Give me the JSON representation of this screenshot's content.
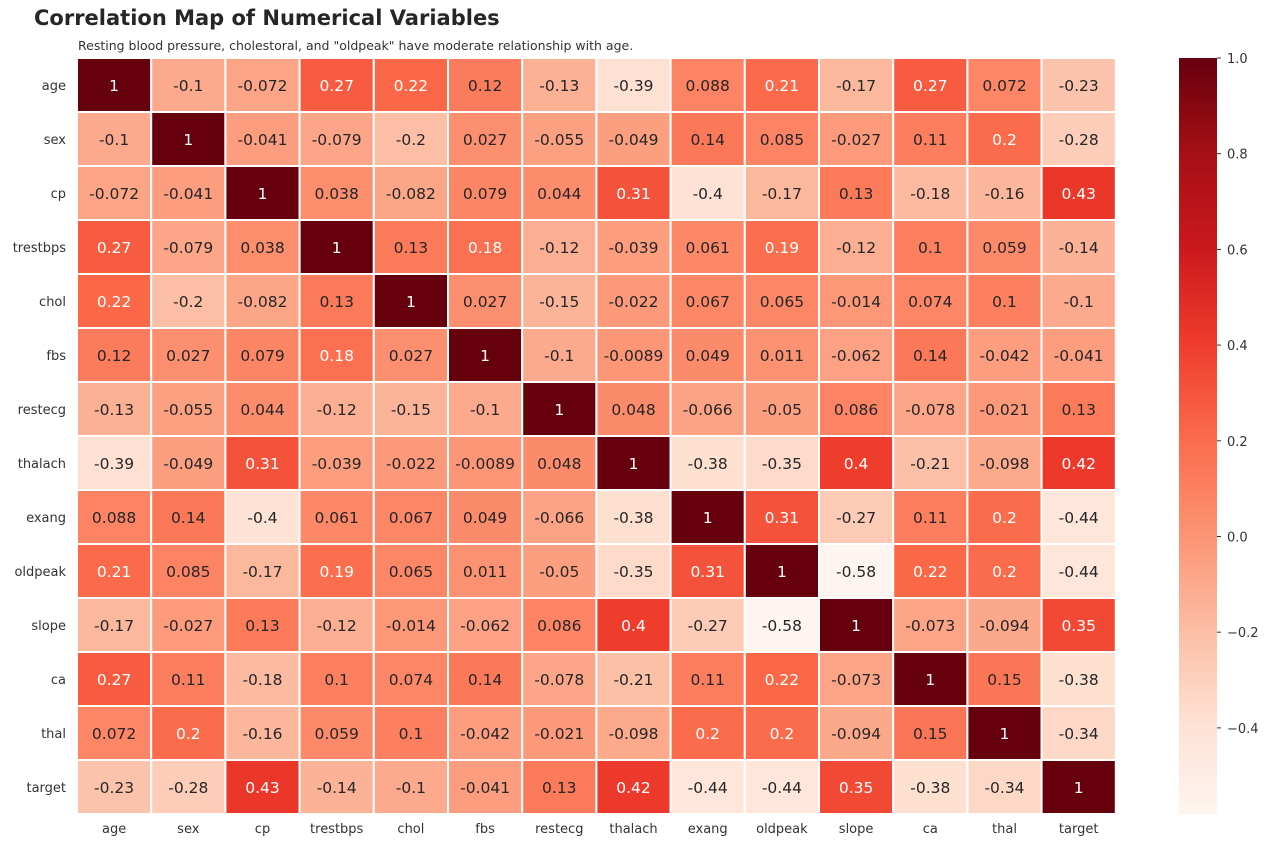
{
  "chart_data": {
    "type": "heatmap",
    "title": "Correlation Map of Numerical Variables",
    "subtitle": "Resting blood pressure, cholestoral, and \"oldpeak\" have moderate relationship with age.",
    "variables": [
      "age",
      "sex",
      "cp",
      "trestbps",
      "chol",
      "fbs",
      "restecg",
      "thalach",
      "exang",
      "oldpeak",
      "slope",
      "ca",
      "thal",
      "target"
    ],
    "values": [
      [
        1,
        -0.1,
        -0.072,
        0.27,
        0.22,
        0.12,
        -0.13,
        -0.39,
        0.088,
        0.21,
        -0.17,
        0.27,
        0.072,
        -0.23
      ],
      [
        -0.1,
        1,
        -0.041,
        -0.079,
        -0.2,
        0.027,
        -0.055,
        -0.049,
        0.14,
        0.085,
        -0.027,
        0.11,
        0.2,
        -0.28
      ],
      [
        -0.072,
        -0.041,
        1,
        0.038,
        -0.082,
        0.079,
        0.044,
        0.31,
        -0.4,
        -0.17,
        0.13,
        -0.18,
        -0.16,
        0.43
      ],
      [
        0.27,
        -0.079,
        0.038,
        1,
        0.13,
        0.18,
        -0.12,
        -0.039,
        0.061,
        0.19,
        -0.12,
        0.1,
        0.059,
        -0.14
      ],
      [
        0.22,
        -0.2,
        -0.082,
        0.13,
        1,
        0.027,
        -0.15,
        -0.022,
        0.067,
        0.065,
        -0.014,
        0.074,
        0.1,
        -0.1
      ],
      [
        0.12,
        0.027,
        0.079,
        0.18,
        0.027,
        1,
        -0.1,
        -0.0089,
        0.049,
        0.011,
        -0.062,
        0.14,
        -0.042,
        -0.041
      ],
      [
        -0.13,
        -0.055,
        0.044,
        -0.12,
        -0.15,
        -0.1,
        1,
        0.048,
        -0.066,
        -0.05,
        0.086,
        -0.078,
        -0.021,
        0.13
      ],
      [
        -0.39,
        -0.049,
        0.31,
        -0.039,
        -0.022,
        -0.0089,
        0.048,
        1,
        -0.38,
        -0.35,
        0.4,
        -0.21,
        -0.098,
        0.42
      ],
      [
        0.088,
        0.14,
        -0.4,
        0.061,
        0.067,
        0.049,
        -0.066,
        -0.38,
        1,
        0.31,
        -0.27,
        0.11,
        0.2,
        -0.44
      ],
      [
        0.21,
        0.085,
        -0.17,
        0.19,
        0.065,
        0.011,
        -0.05,
        -0.35,
        0.31,
        1,
        -0.58,
        0.22,
        0.2,
        -0.44
      ],
      [
        -0.17,
        -0.027,
        0.13,
        -0.12,
        -0.014,
        -0.062,
        0.086,
        0.4,
        -0.27,
        -0.58,
        1,
        -0.073,
        -0.094,
        0.35
      ],
      [
        0.27,
        0.11,
        -0.18,
        0.1,
        0.074,
        0.14,
        -0.078,
        -0.21,
        0.11,
        0.22,
        -0.073,
        1,
        0.15,
        -0.38
      ],
      [
        0.072,
        0.2,
        -0.16,
        0.059,
        0.1,
        -0.042,
        -0.021,
        -0.098,
        0.2,
        0.2,
        -0.094,
        0.15,
        1,
        -0.34
      ],
      [
        -0.23,
        -0.28,
        0.43,
        -0.14,
        -0.1,
        -0.041,
        0.13,
        0.42,
        -0.44,
        -0.44,
        0.35,
        -0.38,
        -0.34,
        1
      ]
    ],
    "colormap": "Reds",
    "vmin": -0.58,
    "vmax": 1,
    "colorbar_ticks": [
      1.0,
      0.8,
      0.6,
      0.4,
      0.2,
      0.0,
      -0.2,
      -0.4
    ],
    "colorbar_tick_labels": [
      "1.0",
      "0.8",
      "0.6",
      "0.4",
      "0.2",
      "0.0",
      "−0.2",
      "−0.4"
    ],
    "annotations": true,
    "grid_line_color": "#ffffff",
    "legend": "colorbar-right"
  }
}
